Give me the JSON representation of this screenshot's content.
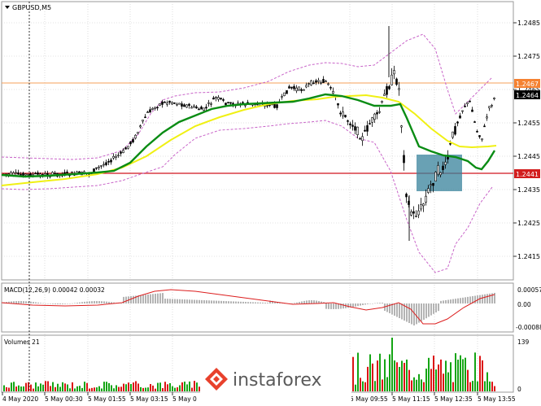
{
  "window": {
    "title": "GBPUSD,M5",
    "menu_icon": "triangle-down-icon"
  },
  "price_axis": {
    "ticks": [
      "1.2485",
      "1.2475",
      "1.2465",
      "1.2455",
      "1.2445",
      "1.2435",
      "1.2425",
      "1.2415"
    ],
    "upper_level_label": "1.2467",
    "current_price_label": "1.2464",
    "lower_level_label": "1.2441"
  },
  "macd": {
    "title": "MACD(12,26,9) 0.00042 0.00032",
    "ticks": [
      "0.00057",
      "0.00",
      "-0.00088"
    ]
  },
  "volumes": {
    "title": "Volumes 21",
    "ticks": [
      "139",
      "0"
    ]
  },
  "time_axis": [
    "4 May 2020",
    "5 May 00:30",
    "5 May 01:55",
    "5 May 03:15",
    "5 May 0",
    "5 May 09:55",
    "5 May 11:15",
    "5 May 12:35",
    "5 May 13:55"
  ],
  "watermark": {
    "text": "instaforex",
    "logo_icon": "instaforex-logo-icon"
  },
  "colors": {
    "grid": "#c8c8c8",
    "candles": "#000000",
    "upper_level": "#f5a05a",
    "lower_level": "#d0141e",
    "label_orange": "#f58232",
    "label_red": "#d21e1e",
    "ma_green": "#0a8c14",
    "ma_yellow": "#f0f014",
    "bollinger": "#c864c8",
    "highlight_box": "#37829b",
    "macd_line": "#dc1e1e",
    "macd_hist": "#b4b4b4",
    "volume_up": "#14a514",
    "volume_down": "#dc1414"
  }
}
